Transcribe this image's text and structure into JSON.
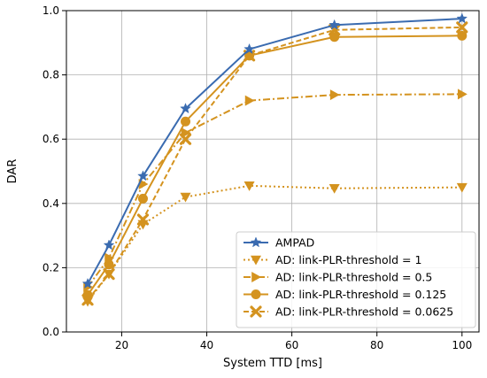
{
  "chart_data": {
    "type": "line",
    "title": "",
    "xlabel": "System TTD [ms]",
    "ylabel": "DAR",
    "xlim": [
      7,
      104
    ],
    "ylim": [
      0.0,
      1.0
    ],
    "xticks": [
      20,
      40,
      60,
      80,
      100
    ],
    "yticks": [
      0.0,
      0.2,
      0.4,
      0.6,
      0.8,
      1.0
    ],
    "xtick_labels": [
      "20",
      "40",
      "60",
      "80",
      "100"
    ],
    "ytick_labels": [
      "0.0",
      "0.2",
      "0.4",
      "0.6",
      "0.8",
      "1.0"
    ],
    "grid": true,
    "legend_position": "lower-right",
    "x": [
      12,
      17,
      25,
      35,
      50,
      70,
      100
    ],
    "series": [
      {
        "name": "AMPAD",
        "values": [
          0.15,
          0.27,
          0.485,
          0.695,
          0.88,
          0.955,
          0.975
        ],
        "color": "#3a6bb0",
        "dash": "solid",
        "marker": "star"
      },
      {
        "name": "AD: link-PLR-threshold = 1",
        "values": [
          0.095,
          0.18,
          0.335,
          0.42,
          0.455,
          0.447,
          0.45
        ],
        "color": "#d4931f",
        "dash": "dotted",
        "marker": "triangle-down"
      },
      {
        "name": "AD: link-PLR-threshold = 0.5",
        "values": [
          0.14,
          0.23,
          0.46,
          0.62,
          0.72,
          0.738,
          0.74
        ],
        "color": "#d4931f",
        "dash": "dashdot",
        "marker": "triangle-right"
      },
      {
        "name": "AD: link-PLR-threshold = 0.125",
        "values": [
          0.115,
          0.21,
          0.415,
          0.655,
          0.86,
          0.918,
          0.922
        ],
        "color": "#d4931f",
        "dash": "solid",
        "marker": "circle"
      },
      {
        "name": "AD: link-PLR-threshold = 0.0625",
        "values": [
          0.1,
          0.18,
          0.35,
          0.6,
          0.86,
          0.94,
          0.948
        ],
        "color": "#d4931f",
        "dash": "dashed",
        "marker": "x"
      }
    ]
  }
}
